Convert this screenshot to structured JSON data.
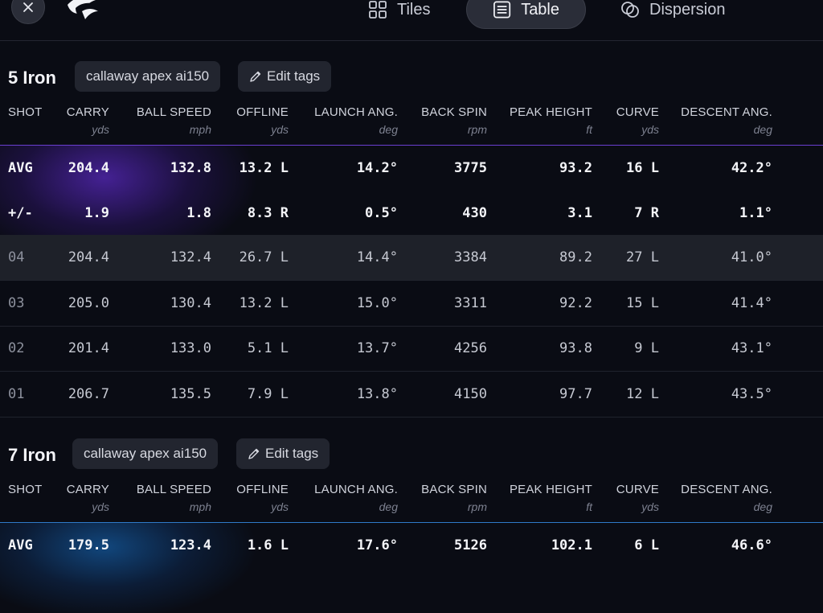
{
  "nav": {
    "tabs": [
      {
        "label": "Tiles",
        "icon": "grid-icon"
      },
      {
        "label": "Table",
        "icon": "table-icon"
      },
      {
        "label": "Dispersion",
        "icon": "dispersion-icon"
      }
    ],
    "active_tab": "Table"
  },
  "columns": [
    {
      "label": "SHOT",
      "unit": ""
    },
    {
      "label": "CARRY",
      "unit": "yds"
    },
    {
      "label": "BALL SPEED",
      "unit": "mph"
    },
    {
      "label": "OFFLINE",
      "unit": "yds"
    },
    {
      "label": "LAUNCH ANG.",
      "unit": "deg"
    },
    {
      "label": "BACK SPIN",
      "unit": "rpm"
    },
    {
      "label": "PEAK HEIGHT",
      "unit": "ft"
    },
    {
      "label": "CURVE",
      "unit": "yds"
    },
    {
      "label": "DESCENT ANG.",
      "unit": "deg"
    }
  ],
  "clubs": [
    {
      "name": "5 Iron",
      "tag": "callaway apex ai150",
      "edit_label": "Edit tags",
      "summary": [
        [
          "AVG",
          "204.4",
          "132.8",
          "13.2 L",
          "14.2°",
          "3775",
          "93.2",
          "16 L",
          "42.2°"
        ],
        [
          "+/-",
          "1.9",
          "1.8",
          "8.3 R",
          "0.5°",
          "430",
          "3.1",
          "7 R",
          "1.1°"
        ]
      ],
      "shots": [
        [
          "04",
          "204.4",
          "132.4",
          "26.7 L",
          "14.4°",
          "3384",
          "89.2",
          "27 L",
          "41.0°"
        ],
        [
          "03",
          "205.0",
          "130.4",
          "13.2 L",
          "15.0°",
          "3311",
          "92.2",
          "15 L",
          "41.4°"
        ],
        [
          "02",
          "201.4",
          "133.0",
          "5.1 L",
          "13.7°",
          "4256",
          "93.8",
          "9 L",
          "43.1°"
        ],
        [
          "01",
          "206.7",
          "135.5",
          "7.9 L",
          "13.8°",
          "4150",
          "97.7",
          "12 L",
          "43.5°"
        ]
      ]
    },
    {
      "name": "7 Iron",
      "tag": "callaway apex ai150",
      "edit_label": "Edit tags",
      "summary": [
        [
          "AVG",
          "179.5",
          "123.4",
          "1.6 L",
          "17.6°",
          "5126",
          "102.1",
          "6 L",
          "46.6°"
        ]
      ],
      "shots": []
    }
  ],
  "colors": {
    "background": "#0a0c14",
    "accent_purple": "#6a3fd0",
    "accent_blue": "#2f7ac8"
  }
}
